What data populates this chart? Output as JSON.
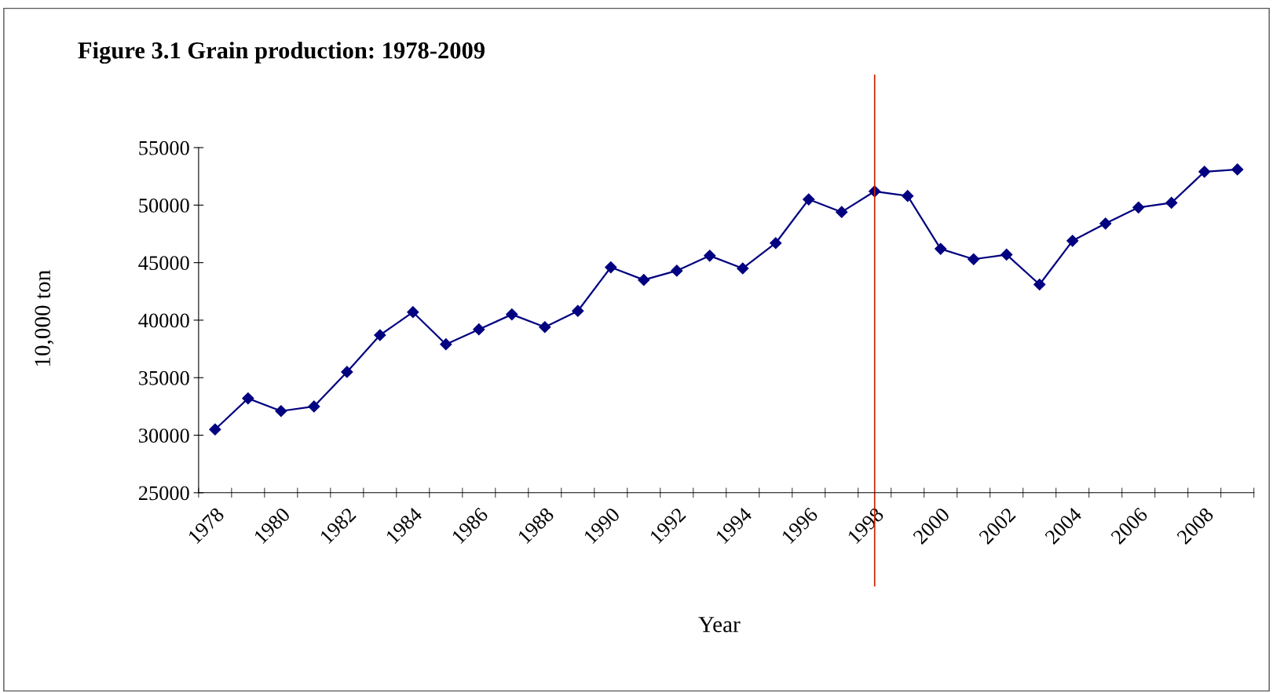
{
  "chart_data": {
    "type": "line",
    "title": "Figure 3.1 Grain production: 1978-2009",
    "xlabel": "Year",
    "ylabel": "10,000 ton",
    "categories": [
      "1978",
      null,
      "1980",
      null,
      "1982",
      null,
      "1984",
      null,
      "1986",
      null,
      "1988",
      null,
      "1990",
      null,
      "1992",
      null,
      "1994",
      null,
      "1996",
      null,
      "1998",
      null,
      "2000",
      null,
      "2002",
      null,
      "2004",
      null,
      "2006",
      null,
      "2008",
      null
    ],
    "series": [
      {
        "color": "#000080",
        "values": [
          30500,
          33200,
          32100,
          32500,
          35500,
          38700,
          40700,
          37900,
          39200,
          40500,
          39400,
          40800,
          44600,
          43500,
          44300,
          45600,
          44500,
          46700,
          50500,
          49400,
          51200,
          50800,
          46200,
          45300,
          45700,
          43100,
          46900,
          48400,
          49800,
          50200,
          52900,
          53100
        ]
      }
    ],
    "ylim": [
      25000,
      55000
    ],
    "yticks": [
      25000,
      30000,
      35000,
      40000,
      45000,
      50000,
      55000
    ],
    "ref_lines": [
      {
        "axis": "x",
        "value": "1998",
        "color": "#cc2200"
      }
    ],
    "marker": "diamond",
    "grid": false,
    "legend": false
  }
}
